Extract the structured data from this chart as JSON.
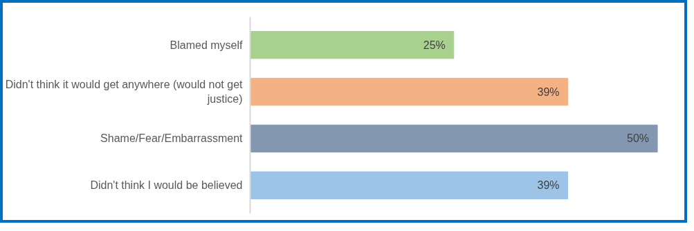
{
  "chart_data": {
    "type": "bar",
    "orientation": "horizontal",
    "categories": [
      "Blamed myself",
      "Didn't think it would get anywhere (would not get justice)",
      "Shame/Fear/Embarrassment",
      "Didn't think I would be believed"
    ],
    "values": [
      25,
      39,
      50,
      39
    ],
    "colors": [
      "#a9d18e",
      "#f4b183",
      "#8497b0",
      "#9dc3e6"
    ],
    "tick_labels": "y",
    "grid": false,
    "value_labels": [
      "25%",
      "39%",
      "50%",
      "39%"
    ]
  }
}
